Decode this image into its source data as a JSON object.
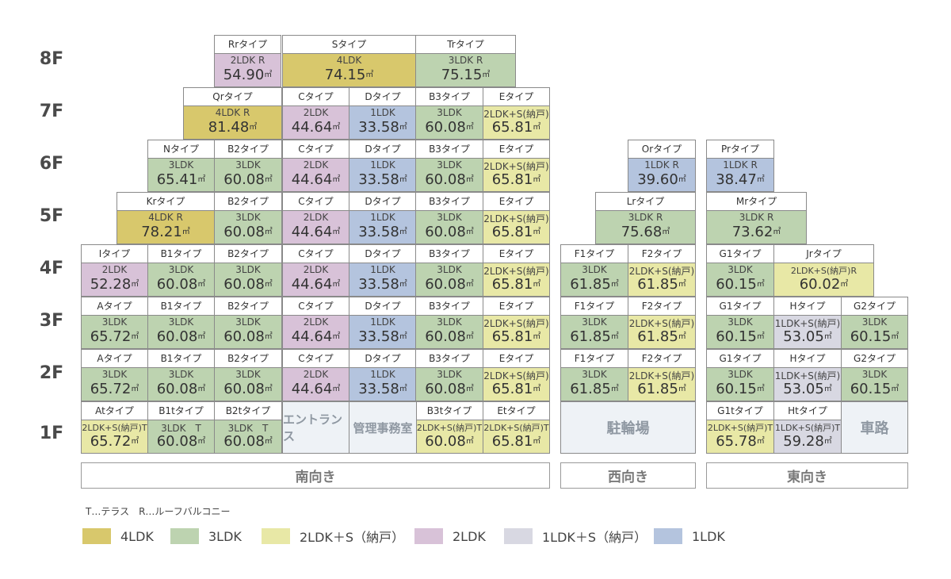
{
  "colors": {
    "4LDK": "#d8c86c",
    "3LDK": "#bdd3b0",
    "2LDK_S": "#e8e8a6",
    "2LDK": "#d8c2d8",
    "1LDK_S": "#d8d8e2",
    "1LDK": "#b4c4de",
    "facility": "#eef2f6"
  },
  "floors": [
    "8F",
    "7F",
    "6F",
    "5F",
    "4F",
    "3F",
    "2F",
    "1F"
  ],
  "units": [
    {
      "floor": "8F",
      "type": "Rrタイプ",
      "layout": "2LDK R",
      "area": "54.90",
      "cat": "2LDK"
    },
    {
      "floor": "8F",
      "type": "Sタイプ",
      "layout": "4LDK",
      "area": "74.15",
      "cat": "4LDK"
    },
    {
      "floor": "8F",
      "type": "Trタイプ",
      "layout": "3LDK R",
      "area": "75.15",
      "cat": "3LDK"
    },
    {
      "floor": "7F",
      "type": "Qrタイプ",
      "layout": "4LDK R",
      "area": "81.48",
      "cat": "4LDK"
    },
    {
      "floor": "7F",
      "type": "Cタイプ",
      "layout": "2LDK",
      "area": "44.64",
      "cat": "2LDK"
    },
    {
      "floor": "7F",
      "type": "Dタイプ",
      "layout": "1LDK",
      "area": "33.58",
      "cat": "1LDK"
    },
    {
      "floor": "7F",
      "type": "B3タイプ",
      "layout": "3LDK",
      "area": "60.08",
      "cat": "3LDK"
    },
    {
      "floor": "7F",
      "type": "Eタイプ",
      "layout": "2LDK+S(納戸)",
      "area": "65.81",
      "cat": "2LDK_S"
    },
    {
      "floor": "6F",
      "type": "Nタイプ",
      "layout": "3LDK",
      "area": "65.41",
      "cat": "3LDK"
    },
    {
      "floor": "6F",
      "type": "B2タイプ",
      "layout": "3LDK",
      "area": "60.08",
      "cat": "3LDK"
    },
    {
      "floor": "6F",
      "type": "Cタイプ",
      "layout": "2LDK",
      "area": "44.64",
      "cat": "2LDK"
    },
    {
      "floor": "6F",
      "type": "Dタイプ",
      "layout": "1LDK",
      "area": "33.58",
      "cat": "1LDK"
    },
    {
      "floor": "6F",
      "type": "B3タイプ",
      "layout": "3LDK",
      "area": "60.08",
      "cat": "3LDK"
    },
    {
      "floor": "6F",
      "type": "Eタイプ",
      "layout": "2LDK+S(納戸)",
      "area": "65.81",
      "cat": "2LDK_S"
    },
    {
      "floor": "6F",
      "type": "Orタイプ",
      "layout": "1LDK R",
      "area": "39.60",
      "cat": "1LDK"
    },
    {
      "floor": "6F",
      "type": "Prタイプ",
      "layout": "1LDK R",
      "area": "38.47",
      "cat": "1LDK"
    },
    {
      "floor": "5F",
      "type": "Krタイプ",
      "layout": "4LDK R",
      "area": "78.21",
      "cat": "4LDK"
    },
    {
      "floor": "5F",
      "type": "B2タイプ",
      "layout": "3LDK",
      "area": "60.08",
      "cat": "3LDK"
    },
    {
      "floor": "5F",
      "type": "Cタイプ",
      "layout": "2LDK",
      "area": "44.64",
      "cat": "2LDK"
    },
    {
      "floor": "5F",
      "type": "Dタイプ",
      "layout": "1LDK",
      "area": "33.58",
      "cat": "1LDK"
    },
    {
      "floor": "5F",
      "type": "B3タイプ",
      "layout": "3LDK",
      "area": "60.08",
      "cat": "3LDK"
    },
    {
      "floor": "5F",
      "type": "Eタイプ",
      "layout": "2LDK+S(納戸)",
      "area": "65.81",
      "cat": "2LDK_S"
    },
    {
      "floor": "5F",
      "type": "Lrタイプ",
      "layout": "3LDK R",
      "area": "75.68",
      "cat": "3LDK"
    },
    {
      "floor": "5F",
      "type": "Mrタイプ",
      "layout": "3LDK R",
      "area": "73.62",
      "cat": "3LDK"
    },
    {
      "floor": "4F",
      "type": "Iタイプ",
      "layout": "2LDK",
      "area": "52.28",
      "cat": "2LDK"
    },
    {
      "floor": "4F",
      "type": "B1タイプ",
      "layout": "3LDK",
      "area": "60.08",
      "cat": "3LDK"
    },
    {
      "floor": "4F",
      "type": "B2タイプ",
      "layout": "3LDK",
      "area": "60.08",
      "cat": "3LDK"
    },
    {
      "floor": "4F",
      "type": "Cタイプ",
      "layout": "2LDK",
      "area": "44.64",
      "cat": "2LDK"
    },
    {
      "floor": "4F",
      "type": "Dタイプ",
      "layout": "1LDK",
      "area": "33.58",
      "cat": "1LDK"
    },
    {
      "floor": "4F",
      "type": "B3タイプ",
      "layout": "3LDK",
      "area": "60.08",
      "cat": "3LDK"
    },
    {
      "floor": "4F",
      "type": "Eタイプ",
      "layout": "2LDK+S(納戸)",
      "area": "65.81",
      "cat": "2LDK_S"
    },
    {
      "floor": "4F",
      "type": "F1タイプ",
      "layout": "3LDK",
      "area": "61.85",
      "cat": "3LDK"
    },
    {
      "floor": "4F",
      "type": "F2タイプ",
      "layout": "2LDK+S(納戸)",
      "area": "61.85",
      "cat": "2LDK_S"
    },
    {
      "floor": "4F",
      "type": "G1タイプ",
      "layout": "3LDK",
      "area": "60.15",
      "cat": "3LDK"
    },
    {
      "floor": "4F",
      "type": "Jrタイプ",
      "layout": "2LDK+S(納戸)R",
      "area": "60.02",
      "cat": "2LDK_S"
    },
    {
      "floor": "3F",
      "type": "Aタイプ",
      "layout": "3LDK",
      "area": "65.72",
      "cat": "3LDK"
    },
    {
      "floor": "3F",
      "type": "B1タイプ",
      "layout": "3LDK",
      "area": "60.08",
      "cat": "3LDK"
    },
    {
      "floor": "3F",
      "type": "B2タイプ",
      "layout": "3LDK",
      "area": "60.08",
      "cat": "3LDK"
    },
    {
      "floor": "3F",
      "type": "Cタイプ",
      "layout": "2LDK",
      "area": "44.64",
      "cat": "2LDK"
    },
    {
      "floor": "3F",
      "type": "Dタイプ",
      "layout": "1LDK",
      "area": "33.58",
      "cat": "1LDK"
    },
    {
      "floor": "3F",
      "type": "B3タイプ",
      "layout": "3LDK",
      "area": "60.08",
      "cat": "3LDK"
    },
    {
      "floor": "3F",
      "type": "Eタイプ",
      "layout": "2LDK+S(納戸)",
      "area": "65.81",
      "cat": "2LDK_S"
    },
    {
      "floor": "3F",
      "type": "F1タイプ",
      "layout": "3LDK",
      "area": "61.85",
      "cat": "3LDK"
    },
    {
      "floor": "3F",
      "type": "F2タイプ",
      "layout": "2LDK+S(納戸)",
      "area": "61.85",
      "cat": "2LDK_S"
    },
    {
      "floor": "3F",
      "type": "G1タイプ",
      "layout": "3LDK",
      "area": "60.15",
      "cat": "3LDK"
    },
    {
      "floor": "3F",
      "type": "Hタイプ",
      "layout": "1LDK+S(納戸)",
      "area": "53.05",
      "cat": "1LDK_S"
    },
    {
      "floor": "3F",
      "type": "G2タイプ",
      "layout": "3LDK",
      "area": "60.15",
      "cat": "3LDK"
    },
    {
      "floor": "2F",
      "type": "Aタイプ",
      "layout": "3LDK",
      "area": "65.72",
      "cat": "3LDK"
    },
    {
      "floor": "2F",
      "type": "B1タイプ",
      "layout": "3LDK",
      "area": "60.08",
      "cat": "3LDK"
    },
    {
      "floor": "2F",
      "type": "B2タイプ",
      "layout": "3LDK",
      "area": "60.08",
      "cat": "3LDK"
    },
    {
      "floor": "2F",
      "type": "Cタイプ",
      "layout": "2LDK",
      "area": "44.64",
      "cat": "2LDK"
    },
    {
      "floor": "2F",
      "type": "Dタイプ",
      "layout": "1LDK",
      "area": "33.58",
      "cat": "1LDK"
    },
    {
      "floor": "2F",
      "type": "B3タイプ",
      "layout": "3LDK",
      "area": "60.08",
      "cat": "3LDK"
    },
    {
      "floor": "2F",
      "type": "Eタイプ",
      "layout": "2LDK+S(納戸)",
      "area": "65.81",
      "cat": "2LDK_S"
    },
    {
      "floor": "2F",
      "type": "F1タイプ",
      "layout": "3LDK",
      "area": "61.85",
      "cat": "3LDK"
    },
    {
      "floor": "2F",
      "type": "F2タイプ",
      "layout": "2LDK+S(納戸)",
      "area": "61.85",
      "cat": "2LDK_S"
    },
    {
      "floor": "2F",
      "type": "G1タイプ",
      "layout": "3LDK",
      "area": "60.15",
      "cat": "3LDK"
    },
    {
      "floor": "2F",
      "type": "Hタイプ",
      "layout": "1LDK+S(納戸)",
      "area": "53.05",
      "cat": "1LDK_S"
    },
    {
      "floor": "2F",
      "type": "G2タイプ",
      "layout": "3LDK",
      "area": "60.15",
      "cat": "3LDK"
    },
    {
      "floor": "1F",
      "type": "Atタイプ",
      "layout": "2LDK+S(納戸)T",
      "area": "65.72",
      "cat": "2LDK_S"
    },
    {
      "floor": "1F",
      "type": "B1tタイプ",
      "layout": "3LDK　T",
      "area": "60.08",
      "cat": "3LDK"
    },
    {
      "floor": "1F",
      "type": "B2tタイプ",
      "layout": "3LDK　T",
      "area": "60.08",
      "cat": "3LDK"
    },
    {
      "floor": "1F",
      "type": "B3tタイプ",
      "layout": "2LDK+S(納戸)T",
      "area": "60.08",
      "cat": "2LDK_S"
    },
    {
      "floor": "1F",
      "type": "Etタイプ",
      "layout": "2LDK+S(納戸)T",
      "area": "65.81",
      "cat": "2LDK_S"
    },
    {
      "floor": "1F",
      "type": "G1tタイプ",
      "layout": "2LDK+S(納戸)T",
      "area": "65.78",
      "cat": "2LDK_S"
    },
    {
      "floor": "1F",
      "type": "Htタイプ",
      "layout": "1LDK+S(納戸)T",
      "area": "59.28",
      "cat": "1LDK_S"
    }
  ],
  "area_unit": "㎡",
  "facilities": {
    "entrance": "エントランス",
    "office": "管理事務室",
    "bicycle": "駐輪場",
    "road": "車路"
  },
  "directions": {
    "south": "南向き",
    "west": "西向き",
    "east": "東向き"
  },
  "note": "T…テラス　R…ルーフバルコニー",
  "legend": [
    {
      "key": "4LDK",
      "label": "4LDK"
    },
    {
      "key": "3LDK",
      "label": "3LDK"
    },
    {
      "key": "2LDK_S",
      "label": "2LDK＋S（納戸）"
    },
    {
      "key": "2LDK",
      "label": "2LDK"
    },
    {
      "key": "1LDK_S",
      "label": "1LDK＋S（納戸）"
    },
    {
      "key": "1LDK",
      "label": "1LDK"
    }
  ]
}
